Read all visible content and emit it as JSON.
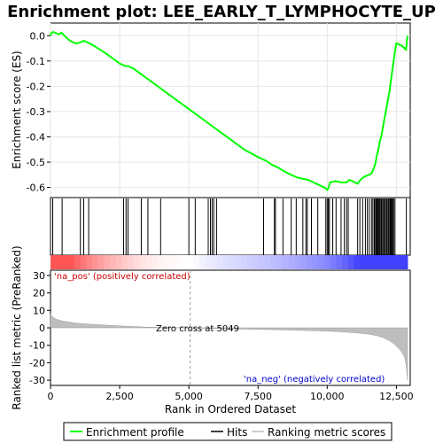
{
  "chart_data": {
    "title": "Enrichment plot: LEE_EARLY_T_LYMPHOCYTE_UP",
    "top_panel": {
      "type": "line",
      "ylabel": "Enrichment score (ES)",
      "ylim": [
        -0.64,
        0.05
      ],
      "yticks": [
        0.0,
        -0.1,
        -0.2,
        -0.3,
        -0.4,
        -0.5,
        -0.6
      ],
      "ytick_labels": [
        "0.0",
        "-0.1",
        "-0.2",
        "-0.3",
        "-0.4",
        "-0.5",
        "-0.6"
      ],
      "series": [
        {
          "name": "Enrichment profile",
          "color": "#00ff00",
          "x": [
            0,
            30,
            100,
            200,
            300,
            400,
            500,
            600,
            700,
            800,
            900,
            1000,
            1100,
            1200,
            1300,
            1400,
            1500,
            2000,
            2500,
            2600,
            2700,
            2800,
            2900,
            3000,
            3500,
            4000,
            4500,
            5000,
            5500,
            6000,
            6500,
            7000,
            7500,
            7800,
            8000,
            8200,
            8500,
            8700,
            8900,
            9100,
            9300,
            9500,
            9700,
            9900,
            10000,
            10050,
            10100,
            10300,
            10500,
            10700,
            10800,
            10900,
            11000,
            11100,
            11200,
            11300,
            11400,
            11500,
            11600,
            11700,
            11750,
            11800,
            11850,
            11900,
            11950,
            12000,
            12050,
            12100,
            12150,
            12200,
            12250,
            12300,
            12350,
            12400,
            12450,
            12500,
            12600,
            12700,
            12800,
            12850,
            12900
          ],
          "y": [
            0.0,
            0.01,
            0.015,
            0.01,
            0.005,
            0.012,
            0.0,
            -0.01,
            -0.02,
            -0.025,
            -0.03,
            -0.03,
            -0.025,
            -0.02,
            -0.025,
            -0.03,
            -0.035,
            -0.07,
            -0.11,
            -0.115,
            -0.12,
            -0.12,
            -0.125,
            -0.13,
            -0.17,
            -0.21,
            -0.25,
            -0.29,
            -0.33,
            -0.37,
            -0.41,
            -0.45,
            -0.48,
            -0.495,
            -0.51,
            -0.52,
            -0.54,
            -0.55,
            -0.56,
            -0.565,
            -0.57,
            -0.58,
            -0.59,
            -0.6,
            -0.61,
            -0.6,
            -0.58,
            -0.575,
            -0.58,
            -0.58,
            -0.57,
            -0.575,
            -0.58,
            -0.585,
            -0.57,
            -0.56,
            -0.555,
            -0.55,
            -0.545,
            -0.52,
            -0.5,
            -0.47,
            -0.45,
            -0.42,
            -0.4,
            -0.37,
            -0.34,
            -0.31,
            -0.28,
            -0.25,
            -0.22,
            -0.18,
            -0.14,
            -0.1,
            -0.06,
            -0.03,
            -0.035,
            -0.04,
            -0.05,
            -0.055,
            0.0
          ]
        }
      ]
    },
    "hits_panel": {
      "type": "scatter",
      "series_name": "Hits",
      "hit_positions": [
        80,
        420,
        1080,
        1200,
        1380,
        2640,
        2730,
        2800,
        3280,
        3520,
        3980,
        5000,
        5230,
        5700,
        5780,
        5840,
        5900,
        6000,
        7700,
        8090,
        8130,
        8400,
        8700,
        8880,
        9120,
        9230,
        9280,
        9430,
        9660,
        9950,
        10000,
        10040,
        10080,
        10200,
        10320,
        10500,
        10620,
        10700,
        10760,
        11100,
        11180,
        11280,
        11380,
        11450,
        11520,
        11600,
        11650,
        11700,
        11720,
        11760,
        11790,
        11810,
        11840,
        11870,
        11890,
        11920,
        11960,
        12000,
        12040,
        12060,
        12100,
        12140,
        12170,
        12210,
        12240,
        12280,
        12310,
        12340,
        12370,
        12400,
        12450,
        12860
      ]
    },
    "rank_panel": {
      "type": "area",
      "series_name": "Ranking metric scores",
      "ylabel": "Ranked list metric (PreRanked)",
      "xlabel": "Rank in Ordered Dataset",
      "xlim": [
        0,
        13000
      ],
      "xticks": [
        0,
        2500,
        5000,
        7500,
        10000,
        12500
      ],
      "xtick_labels": [
        "0",
        "2,500",
        "5,000",
        "7,500",
        "10,000",
        "12,500"
      ],
      "ylim": [
        -33,
        33
      ],
      "yticks": [
        30,
        20,
        10,
        0,
        -10,
        -20,
        -30
      ],
      "ytick_labels": [
        "30",
        "20",
        "10",
        "0",
        "-10",
        "-20",
        "-30"
      ],
      "x": [
        0,
        50,
        200,
        400,
        700,
        1000,
        1500,
        2000,
        2500,
        3000,
        3500,
        4000,
        4500,
        5049,
        5500,
        6000,
        7000,
        8000,
        9000,
        10000,
        10500,
        11000,
        11500,
        11800,
        12000,
        12200,
        12400,
        12600,
        12700,
        12800,
        12850,
        12880,
        12900
      ],
      "y": [
        8.0,
        6.5,
        5.0,
        4.0,
        3.2,
        2.6,
        2.0,
        1.5,
        1.1,
        0.7,
        0.4,
        0.2,
        0.1,
        0.0,
        -0.2,
        -0.4,
        -0.7,
        -1.0,
        -1.4,
        -1.9,
        -2.3,
        -2.8,
        -3.6,
        -4.5,
        -5.5,
        -7.0,
        -9.0,
        -12.0,
        -14.0,
        -17.0,
        -21.0,
        -26.0,
        -30.0
      ]
    },
    "annotations": {
      "pos_label": "'na_pos' (positively correlated)",
      "neg_label": "'na_neg' (negatively correlated)",
      "zero_cross": "Zero cross at 5049",
      "pos_color": "#cc0000",
      "neg_color": "#0000cc"
    },
    "legend": {
      "items": [
        {
          "label": "Enrichment profile",
          "color": "#00ff00"
        },
        {
          "label": "Hits",
          "color": "#000000"
        },
        {
          "label": "Ranking metric scores",
          "color": "#bebebe"
        }
      ]
    }
  }
}
